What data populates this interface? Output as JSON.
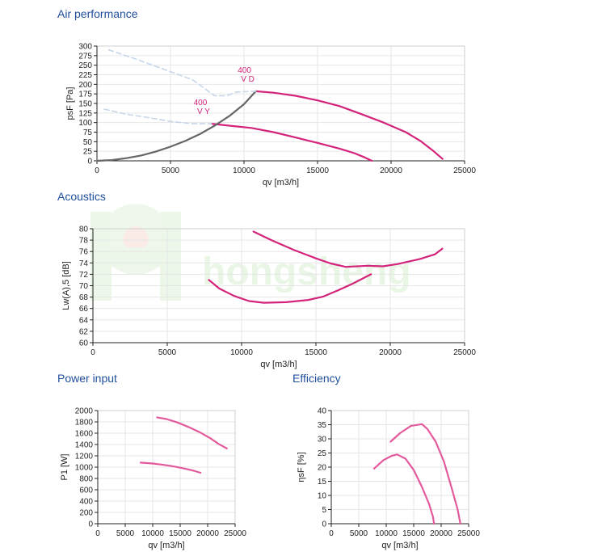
{
  "titles": {
    "air": "Air performance",
    "acoustics": "Acoustics",
    "power": "Power input",
    "efficiency": "Efficiency"
  },
  "watermark": "hongsheng",
  "colors": {
    "title": "#1f4e9c",
    "curve": "#d4237a",
    "curve_light": "#e35a9c",
    "system": "#666666",
    "dashed": "#c5d6ea",
    "watermark": "#e7f4e3"
  },
  "chart_data": [
    {
      "id": "air",
      "type": "line",
      "title": "Air performance",
      "xlabel": "qv [m3/h]",
      "ylabel": "psF [Pa]",
      "xlim": [
        0,
        25000
      ],
      "ylim": [
        0,
        300
      ],
      "xticks": [
        0,
        5000,
        10000,
        15000,
        20000,
        25000
      ],
      "yticks": [
        0,
        25,
        50,
        75,
        100,
        125,
        150,
        175,
        200,
        225,
        250,
        275,
        300
      ],
      "grid": true,
      "series": [
        {
          "name": "400 V D",
          "label_lines": [
            "400",
            "V D"
          ],
          "style": "solid",
          "color": "#d4237a",
          "x": [
            10800,
            12000,
            13500,
            15000,
            16500,
            18000,
            19500,
            21000,
            22000,
            22800,
            23500
          ],
          "y": [
            182,
            178,
            170,
            158,
            143,
            122,
            100,
            75,
            52,
            28,
            5
          ]
        },
        {
          "name": "400 V Y",
          "label_lines": [
            "400",
            "V Y"
          ],
          "style": "solid",
          "color": "#d4237a",
          "x": [
            7800,
            9000,
            10500,
            12000,
            13500,
            15000,
            16500,
            17500,
            18200,
            18700
          ],
          "y": [
            97,
            92,
            86,
            75,
            61,
            47,
            32,
            20,
            9,
            0
          ]
        },
        {
          "name": "system curve",
          "style": "solid",
          "color": "#666666",
          "x": [
            0,
            1000,
            2000,
            3000,
            4000,
            5000,
            6000,
            7000,
            8000,
            9000,
            10000,
            10800
          ],
          "y": [
            0,
            2,
            7,
            14,
            24,
            37,
            52,
            70,
            92,
            117,
            148,
            182
          ]
        },
        {
          "name": "400 V D (extension)",
          "style": "dashed",
          "color": "#c5d6ea",
          "x": [
            800,
            2500,
            4500,
            6500,
            8000,
            8800,
            9500,
            10800
          ],
          "y": [
            290,
            268,
            240,
            212,
            170,
            170,
            180,
            182
          ]
        },
        {
          "name": "400 V Y (extension)",
          "style": "dashed",
          "color": "#c5d6ea",
          "x": [
            500,
            2000,
            3500,
            5000,
            6500,
            7800
          ],
          "y": [
            135,
            122,
            113,
            103,
            97,
            97
          ]
        }
      ]
    },
    {
      "id": "acoustics",
      "type": "line",
      "title": "Acoustics",
      "xlabel": "qv [m3/h]",
      "ylabel": "Lw(A),5 [dB]",
      "xlim": [
        0,
        25000
      ],
      "ylim": [
        60,
        80
      ],
      "xticks": [
        0,
        5000,
        10000,
        15000,
        20000,
        25000
      ],
      "yticks": [
        60,
        62,
        64,
        66,
        68,
        70,
        72,
        74,
        76,
        78,
        80
      ],
      "grid": true,
      "series": [
        {
          "name": "400 V D",
          "style": "solid",
          "color": "#d4237a",
          "x": [
            10800,
            12000,
            13500,
            15000,
            16000,
            17000,
            18500,
            19500,
            20500,
            22000,
            23000,
            23500
          ],
          "y": [
            79.5,
            78.0,
            76.3,
            74.8,
            73.9,
            73.3,
            73.5,
            73.4,
            73.8,
            74.7,
            75.5,
            76.5
          ]
        },
        {
          "name": "400 V Y",
          "style": "solid",
          "color": "#d4237a",
          "x": [
            7800,
            8500,
            9500,
            10500,
            11500,
            13000,
            14500,
            15500,
            16500,
            17500,
            18700
          ],
          "y": [
            71.0,
            69.5,
            68.2,
            67.3,
            67.0,
            67.1,
            67.5,
            68.1,
            69.2,
            70.4,
            72.0
          ]
        }
      ]
    },
    {
      "id": "power",
      "type": "line",
      "title": "Power input",
      "xlabel": "qv [m3/h]",
      "ylabel": "P1 [W]",
      "xlim": [
        0,
        25000
      ],
      "ylim": [
        0,
        2000
      ],
      "xticks": [
        0,
        5000,
        10000,
        15000,
        20000,
        25000
      ],
      "yticks": [
        0,
        200,
        400,
        600,
        800,
        1000,
        1200,
        1400,
        1600,
        1800,
        2000
      ],
      "grid": true,
      "series": [
        {
          "name": "400 V D",
          "style": "solid",
          "color": "#e35a9c",
          "x": [
            10800,
            12500,
            14500,
            16500,
            18500,
            20500,
            22000,
            23500
          ],
          "y": [
            1880,
            1850,
            1790,
            1710,
            1620,
            1510,
            1410,
            1330
          ]
        },
        {
          "name": "400 V Y",
          "style": "solid",
          "color": "#e35a9c",
          "x": [
            7800,
            10000,
            12000,
            14000,
            16000,
            17500,
            18700
          ],
          "y": [
            1080,
            1065,
            1040,
            1010,
            970,
            935,
            900
          ]
        }
      ]
    },
    {
      "id": "efficiency",
      "type": "line",
      "title": "Efficiency",
      "xlabel": "qv [m3/h]",
      "ylabel": "ηsF [%]",
      "xlim": [
        0,
        25000
      ],
      "ylim": [
        0,
        40
      ],
      "xticks": [
        0,
        5000,
        10000,
        15000,
        20000,
        25000
      ],
      "yticks": [
        0,
        5,
        10,
        15,
        20,
        25,
        30,
        35,
        40
      ],
      "grid": true,
      "series": [
        {
          "name": "400 V D",
          "style": "solid",
          "color": "#e35a9c",
          "x": [
            10800,
            12500,
            14500,
            16500,
            17500,
            19000,
            20500,
            22000,
            23000,
            23500
          ],
          "y": [
            29.0,
            32.0,
            34.6,
            35.2,
            33.5,
            29.0,
            22.0,
            12.0,
            5.0,
            0
          ]
        },
        {
          "name": "400 V Y",
          "style": "solid",
          "color": "#e35a9c",
          "x": [
            7800,
            9500,
            11000,
            12000,
            13500,
            15000,
            16500,
            17800,
            18500,
            18700
          ],
          "y": [
            19.5,
            22.5,
            24.0,
            24.5,
            23.0,
            19.0,
            13.0,
            7.0,
            2.5,
            0
          ]
        }
      ]
    }
  ]
}
